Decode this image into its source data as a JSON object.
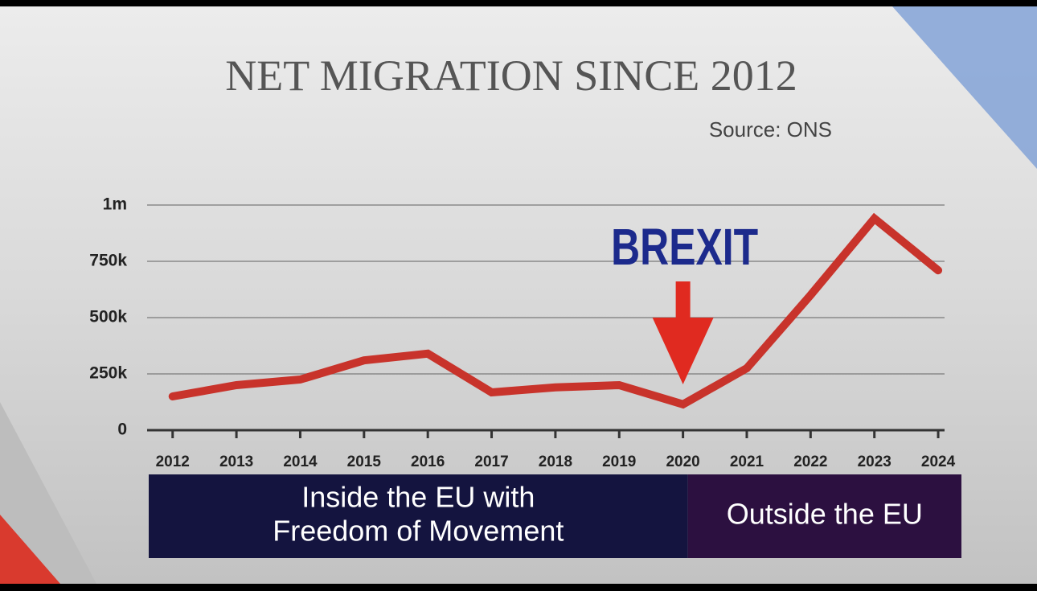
{
  "chart_data": {
    "type": "line",
    "title": "NET MIGRATION SINCE 2012",
    "source": "Source: ONS",
    "x": [
      2012,
      2013,
      2014,
      2015,
      2016,
      2017,
      2018,
      2019,
      2020,
      2021,
      2022,
      2023,
      2024
    ],
    "series": [
      {
        "name": "Net migration",
        "color": "#c8332b",
        "values": [
          150000,
          200000,
          225000,
          310000,
          340000,
          168000,
          190000,
          200000,
          115000,
          275000,
          600000,
          940000,
          710000
        ]
      }
    ],
    "xlim": [
      2011.6,
      2024.1
    ],
    "xticks": [
      2012,
      2013,
      2014,
      2015,
      2016,
      2017,
      2018,
      2019,
      2020,
      2021,
      2022,
      2023,
      2024
    ],
    "ylim": [
      0,
      1000000
    ],
    "yticks": [
      0,
      {
        "value": 250000,
        "label": "250k"
      },
      {
        "value": 500000,
        "label": "500k"
      },
      {
        "value": 750000,
        "label": "750k"
      },
      {
        "value": 1000000,
        "label": "1m"
      }
    ],
    "grid": true,
    "annotation": {
      "text": "BREXIT",
      "x": 2020,
      "color": "#1c2a8c",
      "arrow_color": "#e02a20"
    },
    "bands": [
      {
        "text": [
          "Inside the EU with",
          "Freedom of Movement"
        ],
        "color": "#14143f"
      },
      {
        "text": [
          "Outside the EU"
        ],
        "color": "#2c1040"
      }
    ]
  }
}
